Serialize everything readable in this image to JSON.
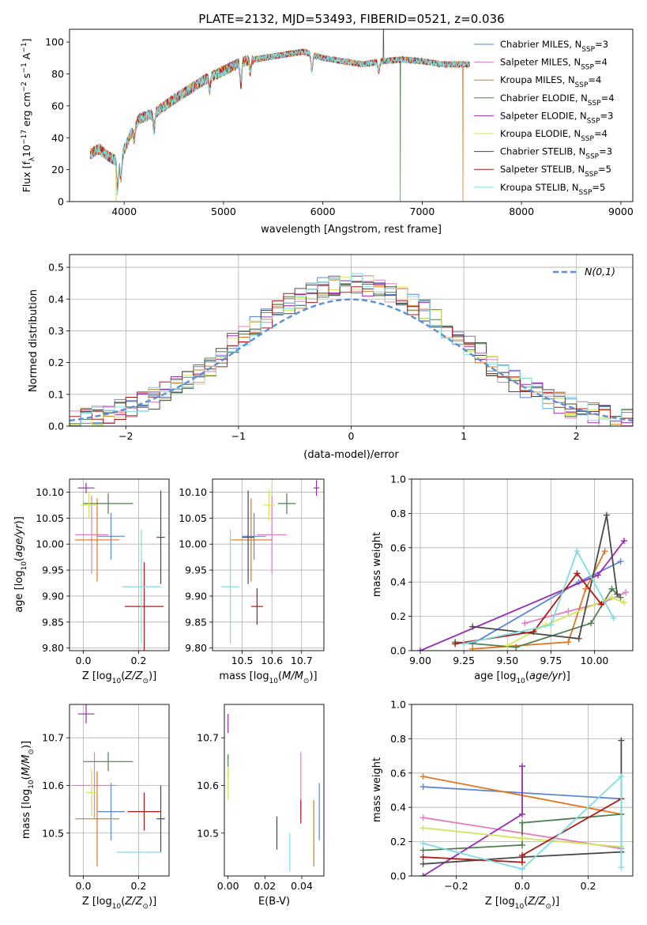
{
  "title": "PLATE=2132, MJD=53493, FIBERID=0521, z=0.036",
  "colors": {
    "chabrier_miles": "#5b86d6",
    "salpeter_miles": "#e17fbd",
    "kroupa_miles": "#e0761d",
    "chabrier_elodie": "#4f7f4f",
    "salpeter_elodie": "#9a2bb5",
    "kroupa_elodie": "#d3e65a",
    "chabrier_stelib": "#4a4a4a",
    "salpeter_stelib": "#b01818",
    "kroupa_stelib": "#7fdde2",
    "normal": "#5b8fd6"
  },
  "chart_data": [
    {
      "type": "line",
      "xlabel": "wavelength [Angstrom, rest frame]",
      "ylabel": "Flux [f_λ 10^-17 erg cm^-2 s^-1 A^-1]",
      "xlim": [
        3450,
        9120
      ],
      "ylim": [
        0,
        108
      ],
      "xticks": [
        4000,
        5000,
        6000,
        7000,
        8000,
        9000
      ],
      "yticks": [
        0,
        20,
        40,
        60,
        80,
        100
      ],
      "legend_placement": "right",
      "legend": [
        "Chabrier MILES, N_SSP=3",
        "Salpeter MILES, N_SSP=4",
        "Kroupa MILES, N_SSP=4",
        "Chabrier ELODIE, N_SSP=4",
        "Salpeter ELODIE, N_SSP=3",
        "Kroupa ELODIE, N_SSP=4",
        "Chabrier STELIB, N_SSP=3",
        "Salpeter STELIB, N_SSP=5",
        "Kroupa STELIB, N_SSP=5"
      ],
      "continuum": {
        "x": [
          3660,
          3750,
          3850,
          3950,
          4050,
          4150,
          4300,
          4450,
          4600,
          4800,
          5000,
          5200,
          5400,
          5600,
          5800,
          6000,
          6200,
          6400,
          6600,
          6800,
          7000,
          7200,
          7400
        ],
        "y": [
          30,
          33,
          28,
          25,
          40,
          52,
          55,
          62,
          68,
          76,
          82,
          88,
          90,
          92,
          94,
          90,
          88,
          86,
          88,
          89,
          88,
          86,
          86
        ]
      },
      "model_dropouts": [
        {
          "x": 3920,
          "series": "Kroupa ELODIE"
        },
        {
          "x": 6780,
          "series": "Chabrier ELODIE"
        },
        {
          "x": 7410,
          "series": "Kroupa MILES"
        }
      ]
    },
    {
      "type": "histogram",
      "xlabel": "(data-model)/error",
      "ylabel": "Normed distribution",
      "xlim": [
        -2.5,
        2.5
      ],
      "ylim": [
        0,
        0.54
      ],
      "xticks": [
        -2,
        -1,
        0,
        1,
        2
      ],
      "yticks": [
        0.0,
        0.1,
        0.2,
        0.3,
        0.4,
        0.5
      ],
      "grid": true,
      "legend_placement": "top-right",
      "normal_label": "N(0,1)",
      "bin_width": 0.1,
      "reference": "standard normal"
    },
    {
      "type": "scatter",
      "xlabel": "Z [log10(Z/Z⊙)]",
      "ylabel": "age  [log10(age/yr)]",
      "xlim": [
        -0.05,
        0.31
      ],
      "ylim": [
        9.795,
        10.125
      ],
      "xticks": [
        0.0,
        0.2
      ],
      "yticks": [
        9.8,
        9.85,
        9.9,
        9.95,
        10.0,
        10.05,
        10.1
      ],
      "grid": true,
      "points": [
        {
          "x": 0.1,
          "y": 10.015,
          "dx": 0.05,
          "dy": 0.045,
          "c": "chabrier_miles"
        },
        {
          "x": 0.03,
          "y": 10.018,
          "dx": 0.06,
          "dy": 0.075,
          "c": "salpeter_miles"
        },
        {
          "x": 0.05,
          "y": 10.008,
          "dx": 0.08,
          "dy": 0.08,
          "c": "kroupa_miles"
        },
        {
          "x": 0.09,
          "y": 10.078,
          "dx": 0.09,
          "dy": 0.02,
          "c": "chabrier_elodie"
        },
        {
          "x": 0.01,
          "y": 10.108,
          "dx": 0.03,
          "dy": 0.01,
          "c": "salpeter_elodie"
        },
        {
          "x": 0.02,
          "y": 10.075,
          "dx": 0.03,
          "dy": 0.025,
          "c": "kroupa_elodie"
        },
        {
          "x": 0.28,
          "y": 10.013,
          "dx": 0.015,
          "dy": 0.09,
          "c": "chabrier_stelib"
        },
        {
          "x": 0.22,
          "y": 9.88,
          "dx": 0.07,
          "dy": 0.085,
          "c": "salpeter_stelib"
        },
        {
          "x": 0.21,
          "y": 9.918,
          "dx": 0.07,
          "dy": 0.11,
          "c": "kroupa_stelib"
        }
      ]
    },
    {
      "type": "scatter",
      "xlabel": "mass [log10(M/M⊙)]",
      "ylabel": "",
      "xlim": [
        10.4,
        10.775
      ],
      "ylim": [
        9.795,
        10.125
      ],
      "xticks": [
        10.5,
        10.6,
        10.7
      ],
      "yticks": [
        9.8,
        9.85,
        9.9,
        9.95,
        10.0,
        10.05,
        10.1
      ],
      "grid": true,
      "points": [
        {
          "x": 10.54,
          "y": 10.015,
          "dx": 0.04,
          "dy": 0.045,
          "c": "chabrier_miles"
        },
        {
          "x": 10.6,
          "y": 10.018,
          "dx": 0.05,
          "dy": 0.075,
          "c": "salpeter_miles"
        },
        {
          "x": 10.53,
          "y": 10.008,
          "dx": 0.07,
          "dy": 0.08,
          "c": "kroupa_miles"
        },
        {
          "x": 10.65,
          "y": 10.078,
          "dx": 0.03,
          "dy": 0.02,
          "c": "chabrier_elodie"
        },
        {
          "x": 10.75,
          "y": 10.108,
          "dx": 0.01,
          "dy": 0.015,
          "c": "salpeter_elodie"
        },
        {
          "x": 10.59,
          "y": 10.075,
          "dx": 0.02,
          "dy": 0.03,
          "c": "kroupa_elodie"
        },
        {
          "x": 10.52,
          "y": 10.013,
          "dx": 0.02,
          "dy": 0.09,
          "c": "chabrier_stelib"
        },
        {
          "x": 10.55,
          "y": 9.88,
          "dx": 0.02,
          "dy": 0.035,
          "c": "salpeter_stelib"
        },
        {
          "x": 10.46,
          "y": 9.918,
          "dx": 0.03,
          "dy": 0.11,
          "c": "kroupa_stelib"
        }
      ]
    },
    {
      "type": "line",
      "xlabel": "age  [log10(age/yr)]",
      "ylabel": "mass weight",
      "xlim": [
        8.95,
        10.22
      ],
      "ylim": [
        0,
        1.0
      ],
      "xticks": [
        9.0,
        9.25,
        9.5,
        9.75,
        10.0
      ],
      "yticks": [
        0.0,
        0.2,
        0.4,
        0.6,
        0.8,
        1.0
      ],
      "grid": true,
      "series": [
        {
          "c": "chabrier_miles",
          "x": [
            9.3,
            9.91,
            10.15
          ],
          "y": [
            0.04,
            0.4,
            0.52
          ]
        },
        {
          "c": "salpeter_miles",
          "x": [
            9.6,
            9.85,
            10.05,
            10.18
          ],
          "y": [
            0.16,
            0.23,
            0.28,
            0.34
          ]
        },
        {
          "c": "kroupa_miles",
          "x": [
            9.3,
            9.85,
            9.95,
            10.06
          ],
          "y": [
            0.01,
            0.05,
            0.36,
            0.58
          ]
        },
        {
          "c": "chabrier_elodie",
          "x": [
            9.2,
            9.55,
            9.98,
            10.1,
            10.15
          ],
          "y": [
            0.05,
            0.02,
            0.16,
            0.36,
            0.31
          ]
        },
        {
          "c": "salpeter_elodie",
          "x": [
            9.0,
            10.02,
            10.17
          ],
          "y": [
            0.0,
            0.44,
            0.64
          ]
        },
        {
          "c": "kroupa_elodie",
          "x": [
            9.5,
            9.72,
            10.1,
            10.17
          ],
          "y": [
            0.03,
            0.15,
            0.31,
            0.28
          ]
        },
        {
          "c": "chabrier_stelib",
          "x": [
            9.3,
            9.91,
            10.07,
            10.13
          ],
          "y": [
            0.14,
            0.07,
            0.79,
            0.33
          ]
        },
        {
          "c": "salpeter_stelib",
          "x": [
            9.2,
            9.65,
            9.9,
            10.04
          ],
          "y": [
            0.04,
            0.11,
            0.45,
            0.27
          ]
        },
        {
          "c": "kroupa_stelib",
          "x": [
            9.25,
            9.75,
            9.9,
            10.11
          ],
          "y": [
            0.04,
            0.15,
            0.58,
            0.19
          ]
        }
      ]
    },
    {
      "type": "scatter",
      "xlabel": "Z [log10(Z/Z⊙)]",
      "ylabel": "mass [log10(M/M⊙)]",
      "xlim": [
        -0.05,
        0.31
      ],
      "ylim": [
        10.41,
        10.77
      ],
      "xticks": [
        0.0,
        0.2
      ],
      "yticks": [
        10.5,
        10.6,
        10.7
      ],
      "grid": true,
      "points": [
        {
          "x": 0.1,
          "y": 10.545,
          "dx": 0.05,
          "dy": 0.06,
          "c": "chabrier_miles"
        },
        {
          "x": 0.04,
          "y": 10.6,
          "dx": 0.08,
          "dy": 0.07,
          "c": "salpeter_miles"
        },
        {
          "x": 0.05,
          "y": 10.53,
          "dx": 0.08,
          "dy": 0.1,
          "c": "kroupa_miles"
        },
        {
          "x": 0.09,
          "y": 10.65,
          "dx": 0.09,
          "dy": 0.02,
          "c": "chabrier_elodie"
        },
        {
          "x": 0.01,
          "y": 10.75,
          "dx": 0.03,
          "dy": 0.02,
          "c": "salpeter_elodie"
        },
        {
          "x": 0.03,
          "y": 10.585,
          "dx": 0.02,
          "dy": 0.05,
          "c": "kroupa_elodie"
        },
        {
          "x": 0.28,
          "y": 10.53,
          "dx": 0.015,
          "dy": 0.07,
          "c": "chabrier_stelib"
        },
        {
          "x": 0.22,
          "y": 10.545,
          "dx": 0.06,
          "dy": 0.04,
          "c": "salpeter_stelib"
        },
        {
          "x": 0.2,
          "y": 10.46,
          "dx": 0.08,
          "dy": 0.04,
          "c": "kroupa_stelib"
        }
      ]
    },
    {
      "type": "scatter",
      "xlabel": "E(B-V)",
      "ylabel": "",
      "xlim": [
        -0.002,
        0.052
      ],
      "ylim": [
        10.41,
        10.77
      ],
      "xticks": [
        0.0,
        0.02,
        0.04
      ],
      "yticks": [
        10.5,
        10.6,
        10.7
      ],
      "grid": false,
      "points": [
        {
          "x": 0.0495,
          "y": 10.545,
          "dx": 0,
          "dy": 0.06,
          "c": "chabrier_miles"
        },
        {
          "x": 0.0395,
          "y": 10.6,
          "dx": 0,
          "dy": 0.07,
          "c": "salpeter_miles"
        },
        {
          "x": 0.0465,
          "y": 10.5,
          "dx": 0,
          "dy": 0.07,
          "c": "kroupa_miles"
        },
        {
          "x": 0.0,
          "y": 10.64,
          "dx": 0,
          "dy": 0.025,
          "c": "chabrier_elodie"
        },
        {
          "x": 0.0,
          "y": 10.73,
          "dx": 0,
          "dy": 0.02,
          "c": "salpeter_elodie"
        },
        {
          "x": 0.0,
          "y": 10.605,
          "dx": 0,
          "dy": 0.035,
          "c": "kroupa_elodie"
        },
        {
          "x": 0.0265,
          "y": 10.5,
          "dx": 0,
          "dy": 0.035,
          "c": "chabrier_stelib"
        },
        {
          "x": 0.0395,
          "y": 10.545,
          "dx": 0,
          "dy": 0.025,
          "c": "salpeter_stelib"
        },
        {
          "x": 0.0335,
          "y": 10.46,
          "dx": 0,
          "dy": 0.04,
          "c": "kroupa_stelib"
        }
      ]
    },
    {
      "type": "line",
      "xlabel": "Z [log10(Z/Z⊙)]",
      "ylabel": "mass weight",
      "xlim": [
        -0.335,
        0.335
      ],
      "ylim": [
        0,
        1.0
      ],
      "xticks": [
        -0.2,
        0.0,
        0.2
      ],
      "yticks": [
        0.0,
        0.2,
        0.4,
        0.6,
        0.8,
        1.0
      ],
      "grid": true,
      "series": [
        {
          "c": "chabrier_miles",
          "x": [
            -0.3,
            0.3
          ],
          "y": [
            0.52,
            0.45
          ]
        },
        {
          "c": "salpeter_miles",
          "x": [
            -0.3,
            0.3
          ],
          "y": [
            0.34,
            0.16
          ]
        },
        {
          "c": "kroupa_miles",
          "x": [
            -0.3,
            0.3
          ],
          "y": [
            0.58,
            0.36
          ]
        },
        {
          "c": "chabrier_elodie",
          "x": [
            -0.3,
            0.0,
            0.0,
            0.3
          ],
          "y": [
            0.15,
            0.18,
            0.31,
            0.36
          ]
        },
        {
          "c": "salpeter_elodie",
          "x": [
            -0.3,
            0.0,
            0.0
          ],
          "y": [
            0.0,
            0.36,
            0.64
          ]
        },
        {
          "c": "kroupa_elodie",
          "x": [
            -0.3,
            0.0,
            0.3
          ],
          "y": [
            0.28,
            0.22,
            0.17
          ]
        },
        {
          "c": "chabrier_stelib",
          "x": [
            -0.3,
            0.0,
            0.3,
            0.3
          ],
          "y": [
            0.07,
            0.11,
            0.14,
            0.79
          ]
        },
        {
          "c": "salpeter_stelib",
          "x": [
            -0.3,
            0.0,
            0.0,
            0.3
          ],
          "y": [
            0.11,
            0.08,
            0.12,
            0.45
          ]
        },
        {
          "c": "kroupa_stelib",
          "x": [
            -0.3,
            0.0,
            0.3,
            0.3
          ],
          "y": [
            0.19,
            0.04,
            0.58,
            0.05
          ]
        }
      ]
    }
  ]
}
